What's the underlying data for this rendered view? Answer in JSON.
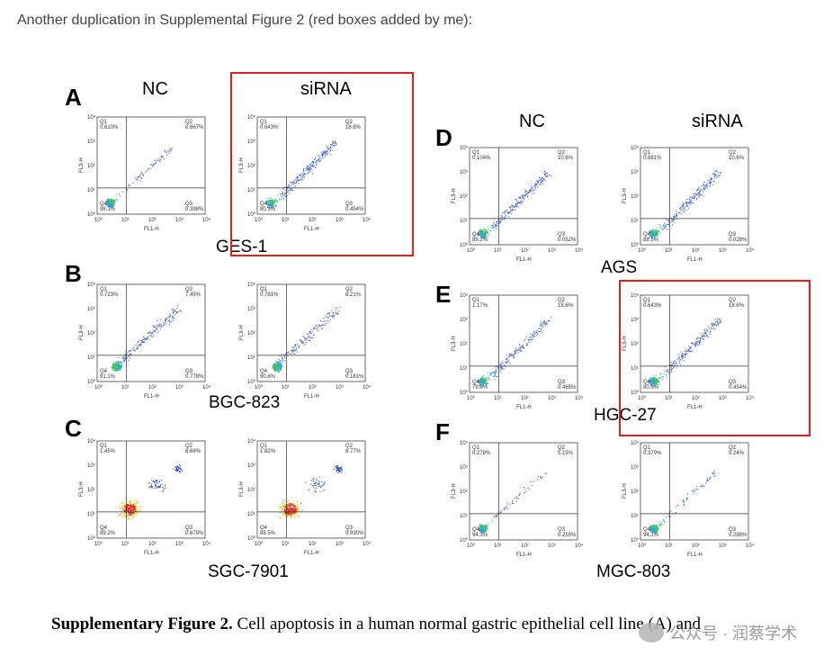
{
  "intro_text": "Another duplication in Supplemental Figure 2 (red boxes added by me):",
  "figure": {
    "letters": [
      "A",
      "B",
      "C",
      "D",
      "E",
      "F"
    ],
    "column_titles": {
      "nc_left": "NC",
      "sirna_left": "siRNA",
      "nc_right": "NC",
      "sirna_right": "siRNA"
    },
    "cell_lines": [
      "GES-1",
      "BGC-823",
      "SGC-7901",
      "AGS",
      "HGC-27",
      "MGC-803"
    ],
    "axis": {
      "xlabel": "FL1-H",
      "ylabel": "FL3-H",
      "ticks": [
        "10⁰",
        "10¹",
        "10²",
        "10³",
        "10⁴"
      ]
    },
    "quadrant_names": [
      "Q1",
      "Q2",
      "Q3",
      "Q4"
    ],
    "panels": [
      {
        "id": "A-NC",
        "q1": "0.610%",
        "q2": "0.667%",
        "q3": "0.398%",
        "q4": "98.3%",
        "pattern": "tight"
      },
      {
        "id": "A-siRNA",
        "q1": "0.643%",
        "q2": "18.6%",
        "q3": "0.454%",
        "q4": "80.3%",
        "pattern": "diag"
      },
      {
        "id": "B-NC",
        "q1": "0.723%",
        "q2": "7.45%",
        "q3": "0.778%",
        "q4": "91.1%",
        "pattern": "mid"
      },
      {
        "id": "B-siRNA",
        "q1": "0.781%",
        "q2": "8.21%",
        "q3": "0.181%",
        "q4": "90.8%",
        "pattern": "mid"
      },
      {
        "id": "C-NC",
        "q1": "1.45%",
        "q2": "8.68%",
        "q3": "0.679%",
        "q4": "89.2%",
        "pattern": "blob"
      },
      {
        "id": "C-siRNA",
        "q1": "1.82%",
        "q2": "8.77%",
        "q3": "0.930%",
        "q4": "88.5%",
        "pattern": "blob"
      },
      {
        "id": "D-NC",
        "q1": "0.104%",
        "q2": "10.6%",
        "q3": "0.052%",
        "q4": "89.2%",
        "pattern": "diag"
      },
      {
        "id": "D-siRNA",
        "q1": "0.881%",
        "q2": "10.6%",
        "q3": "0.028%",
        "q4": "88.5%",
        "pattern": "diag"
      },
      {
        "id": "E-NC",
        "q1": "1.17%",
        "q2": "18.6%",
        "q3": "0.465%",
        "q4": "79.8%",
        "pattern": "diag"
      },
      {
        "id": "E-siRNA",
        "q1": "0.643%",
        "q2": "18.6%",
        "q3": "0.454%",
        "q4": "80.3%",
        "pattern": "diag"
      },
      {
        "id": "F-NC",
        "q1": "0.278%",
        "q2": "5.15%",
        "q3": "0.255%",
        "q4": "94.3%",
        "pattern": "tight"
      },
      {
        "id": "F-siRNA",
        "q1": "0.379%",
        "q2": "5.24%",
        "q3": "0.288%",
        "q4": "94.1%",
        "pattern": "tight"
      }
    ],
    "caption_bold": "Supplementary Figure 2.",
    "caption_rest": " Cell apoptosis in a human normal gastric epithelial cell line (A) and"
  },
  "watermark": "公众号 · 润蔡学术",
  "colors": {
    "highlight_box": "#e02020"
  }
}
